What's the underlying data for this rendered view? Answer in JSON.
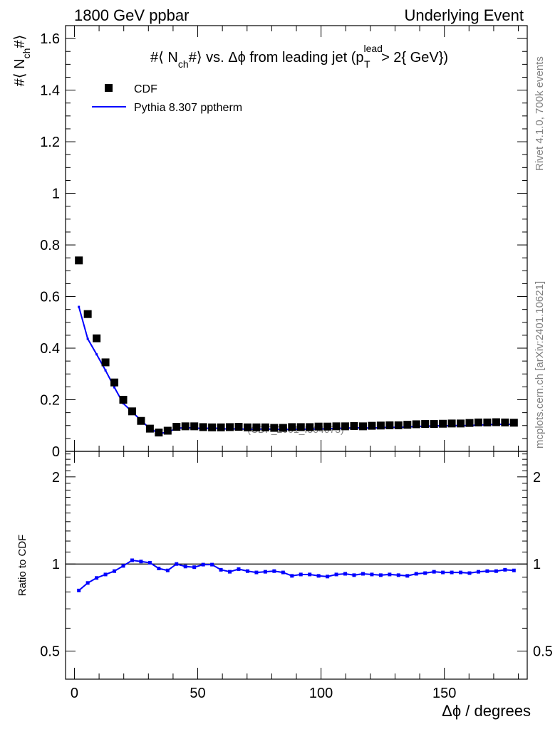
{
  "header": {
    "left_label": "1800 GeV ppbar",
    "right_label": "Underlying Event"
  },
  "side": {
    "rivet_label": "Rivet 4.1.0,  700k events",
    "mcplots_label": "mcplots.cern.ch [arXiv:2401.10621]"
  },
  "chart_data": [
    {
      "type": "scatter",
      "panel": "main",
      "title": {
        "prefix": "#⟨ N",
        "sub1": "ch",
        "mid": "#⟩ vs. Δϕ from leading jet (p",
        "sup2": "lead",
        "sub2": "T",
        "suffix": " > 2{ GeV})"
      },
      "ylabel": {
        "prefix": "#⟨ N",
        "sub": "ch",
        "suffix": "#⟩"
      },
      "xlabel": "",
      "xlim": [
        -3.6,
        183.6
      ],
      "ylim": [
        0,
        1.65
      ],
      "yticks_major": [
        0,
        0.2,
        0.4,
        0.6,
        0.8,
        1,
        1.2,
        1.4,
        1.6
      ],
      "ytick_labels": [
        "0",
        "0.2",
        "0.4",
        "0.6",
        "0.8",
        "1",
        "1.2",
        "1.4",
        "1.6"
      ],
      "legend_position": "top-left",
      "watermark": "(CDF_2001_I564673)",
      "x": [
        1.8,
        5.4,
        9.0,
        12.6,
        16.2,
        19.8,
        23.4,
        27.0,
        30.6,
        34.2,
        37.8,
        41.4,
        45.0,
        48.6,
        52.2,
        55.8,
        59.4,
        63.0,
        66.6,
        70.2,
        73.8,
        77.4,
        81.0,
        84.6,
        88.2,
        91.8,
        95.4,
        99.0,
        102.6,
        106.2,
        109.8,
        113.4,
        117.0,
        120.6,
        124.2,
        127.8,
        131.4,
        135.0,
        138.6,
        142.2,
        145.8,
        149.4,
        153.0,
        156.6,
        160.2,
        163.8,
        167.4,
        171.0,
        174.6,
        178.2
      ],
      "series": [
        {
          "name": "CDF",
          "style": "markers",
          "color": "#000000",
          "values": [
            0.74,
            0.532,
            0.438,
            0.345,
            0.267,
            0.2,
            0.155,
            0.118,
            0.088,
            0.073,
            0.08,
            0.095,
            0.097,
            0.097,
            0.094,
            0.093,
            0.093,
            0.094,
            0.095,
            0.093,
            0.093,
            0.093,
            0.091,
            0.091,
            0.094,
            0.094,
            0.094,
            0.096,
            0.096,
            0.097,
            0.097,
            0.098,
            0.097,
            0.099,
            0.1,
            0.101,
            0.101,
            0.103,
            0.105,
            0.106,
            0.106,
            0.107,
            0.108,
            0.108,
            0.11,
            0.112,
            0.112,
            0.113,
            0.112,
            0.111
          ]
        },
        {
          "name": "Pythia 8.307 pptherm",
          "style": "line",
          "color": "#0000ff",
          "values": [
            0.56,
            0.436,
            0.376,
            0.314,
            0.248,
            0.186,
            0.153,
            0.12,
            0.088,
            0.07,
            0.073,
            0.09,
            0.091,
            0.091,
            0.088,
            0.091,
            0.088,
            0.086,
            0.088,
            0.085,
            0.086,
            0.087,
            0.086,
            0.085,
            0.085,
            0.086,
            0.086,
            0.087,
            0.087,
            0.089,
            0.09,
            0.091,
            0.091,
            0.09,
            0.092,
            0.093,
            0.093,
            0.094,
            0.097,
            0.097,
            0.099,
            0.099,
            0.1,
            0.1,
            0.1,
            0.102,
            0.103,
            0.105,
            0.105,
            0.105
          ]
        }
      ]
    },
    {
      "type": "line",
      "panel": "ratio",
      "ylabel": "Ratio to CDF",
      "xlabel": "Δϕ / degrees",
      "xlim": [
        -3.6,
        183.6
      ],
      "ylim": [
        0.4,
        2.45
      ],
      "yscale": "log",
      "yticks_labeled": [
        0.5,
        1,
        2
      ],
      "ytick_labels": [
        "0.5",
        "1",
        "2"
      ],
      "xticks": [
        0,
        50,
        100,
        150
      ],
      "xtick_labels": [
        "0",
        "50",
        "100",
        "150"
      ],
      "reference_line": 1,
      "series": [
        {
          "name": "Pythia 8.307 pptherm / CDF",
          "color": "#0000ff",
          "values": [
            0.81,
            0.86,
            0.895,
            0.92,
            0.945,
            0.985,
            1.03,
            1.02,
            1.01,
            0.965,
            0.95,
            1.0,
            0.98,
            0.975,
            0.995,
            0.995,
            0.955,
            0.94,
            0.96,
            0.945,
            0.935,
            0.94,
            0.945,
            0.935,
            0.91,
            0.92,
            0.92,
            0.91,
            0.905,
            0.92,
            0.925,
            0.915,
            0.925,
            0.92,
            0.915,
            0.92,
            0.915,
            0.91,
            0.925,
            0.93,
            0.94,
            0.935,
            0.935,
            0.935,
            0.93,
            0.94,
            0.945,
            0.945,
            0.955,
            0.95
          ]
        }
      ]
    }
  ]
}
